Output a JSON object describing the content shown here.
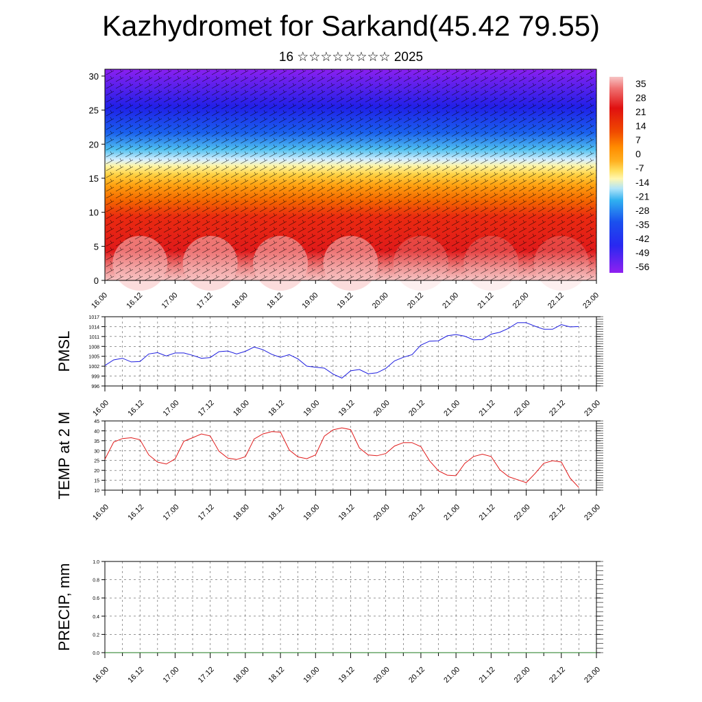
{
  "title": "Kazhydromet for Sarkand(45.42 79.55)",
  "subtitle": "16 ☆☆☆☆☆☆☆☆ 2025",
  "colors": {
    "pmsl_line": "#1a1adf",
    "temp_line": "#e01818",
    "precip_line": "#1a7a1a",
    "axis": "#000000",
    "grid": "#777777"
  },
  "chart_data": [
    {
      "type": "heatmap",
      "name": "cross-section",
      "x_ticks": [
        "16.00",
        "16.12",
        "17.00",
        "17.12",
        "18.00",
        "18.12",
        "19.00",
        "19.12",
        "20.00",
        "20.12",
        "21.00",
        "21.12",
        "22.00",
        "22.12",
        "23.00"
      ],
      "y_ticks": [
        "0",
        "5",
        "10",
        "15",
        "20",
        "25",
        "30"
      ],
      "ylim": [
        0,
        31
      ],
      "colorbar_labels": [
        "35",
        "28",
        "21",
        "14",
        "7",
        "0",
        "-7",
        "-14",
        "-21",
        "-28",
        "-35",
        "-42",
        "-49",
        "-56"
      ],
      "colorbar_colors": [
        "#f7b0b0",
        "#ea4a4a",
        "#e01010",
        "#f04a00",
        "#ff8c00",
        "#ffb020",
        "#ffe060",
        "#fff7b0",
        "#b0e4f8",
        "#30b0f0",
        "#1a50ee",
        "#2828f0",
        "#5018f0",
        "#9020f0"
      ],
      "layers_by_altitude": [
        {
          "z": 0,
          "t": 38
        },
        {
          "z": 5,
          "t": 26
        },
        {
          "z": 10,
          "t": 8
        },
        {
          "z": 15,
          "t": -10
        },
        {
          "z": 20,
          "t": -38
        },
        {
          "z": 25,
          "t": -52
        },
        {
          "z": 30,
          "t": -58
        }
      ],
      "overlay": "wind barbs"
    },
    {
      "type": "line",
      "ylabel": "PMSL",
      "x_ticks": [
        "16.00",
        "16.12",
        "17.00",
        "17.12",
        "18.00",
        "18.12",
        "19.00",
        "19.12",
        "20.00",
        "20.12",
        "21.00",
        "21.12",
        "22.00",
        "22.12",
        "23.00"
      ],
      "y_ticks": [
        "996",
        "999",
        "1002",
        "1005",
        "1008",
        "1011",
        "1014",
        "1017"
      ],
      "ylim": [
        996,
        1017
      ],
      "x_hours": [
        0,
        3,
        6,
        9,
        12,
        15,
        18,
        21,
        24,
        27,
        30,
        33,
        36,
        39,
        42,
        45,
        48,
        51,
        54,
        57,
        60,
        63,
        66,
        69,
        72,
        75,
        78,
        81,
        84,
        87,
        90,
        93,
        96,
        99,
        102,
        105,
        108,
        111,
        114,
        117,
        120,
        123,
        126,
        129,
        132,
        135,
        138,
        141,
        144,
        147,
        150,
        153,
        156,
        159,
        162
      ],
      "values": [
        1002.2,
        1003.9,
        1004.4,
        1003.3,
        1003.4,
        1005.7,
        1006.1,
        1005.1,
        1006.0,
        1006.0,
        1005.3,
        1004.4,
        1004.6,
        1006.4,
        1006.6,
        1005.7,
        1006.5,
        1007.8,
        1007.0,
        1005.6,
        1004.7,
        1005.5,
        1004.2,
        1002.0,
        1001.7,
        1001.4,
        999.6,
        998.4,
        1000.6,
        1001.0,
        999.7,
        1000.0,
        1001.3,
        1003.6,
        1004.7,
        1005.5,
        1008.4,
        1009.6,
        1009.7,
        1011.2,
        1011.6,
        1011.1,
        1010.0,
        1010.1,
        1011.7,
        1012.3,
        1013.5,
        1015.2,
        1015.2,
        1014.1,
        1013.2,
        1013.2,
        1014.6,
        1013.9,
        1014.0
      ]
    },
    {
      "type": "line",
      "ylabel": "TEMP at 2 M",
      "x_ticks": [
        "16.00",
        "16.12",
        "17.00",
        "17.12",
        "18.00",
        "18.12",
        "19.00",
        "19.12",
        "20.00",
        "20.12",
        "21.00",
        "21.12",
        "22.00",
        "22.12",
        "23.00"
      ],
      "y_ticks": [
        "10",
        "15",
        "20",
        "25",
        "30",
        "35",
        "40",
        "45"
      ],
      "ylim": [
        10,
        45
      ],
      "x_hours": [
        0,
        3,
        6,
        9,
        12,
        15,
        18,
        21,
        24,
        27,
        30,
        33,
        36,
        39,
        42,
        45,
        48,
        51,
        54,
        57,
        60,
        63,
        66,
        69,
        72,
        75,
        78,
        81,
        84,
        87,
        90,
        93,
        96,
        99,
        102,
        105,
        108,
        111,
        114,
        117,
        120,
        123,
        126,
        129,
        132,
        135,
        138,
        141,
        144,
        147,
        150,
        153,
        156,
        159,
        162
      ],
      "values": [
        25.6,
        34.3,
        36.1,
        36.5,
        35.5,
        27.8,
        24.2,
        23.2,
        25.8,
        34.7,
        36.5,
        38.4,
        37.4,
        29.7,
        26.2,
        25.5,
        26.9,
        35.9,
        38.4,
        39.6,
        39.3,
        30.3,
        26.8,
        25.9,
        27.8,
        37.3,
        40.5,
        41.5,
        40.6,
        31.3,
        27.8,
        27.4,
        28.5,
        32.3,
        34.0,
        34.0,
        32.0,
        24.8,
        19.8,
        17.6,
        17.3,
        23.5,
        27.0,
        28.2,
        27.0,
        20.3,
        16.8,
        15.3,
        13.8,
        18.4,
        23.6,
        24.9,
        24.2,
        16.1,
        11.3
      ]
    },
    {
      "type": "line",
      "ylabel": "PRECIP, mm",
      "x_ticks": [
        "16.00",
        "16.12",
        "17.00",
        "17.12",
        "18.00",
        "18.12",
        "19.00",
        "19.12",
        "20.00",
        "20.12",
        "21.00",
        "21.12",
        "22.00",
        "22.12",
        "23.00"
      ],
      "y_ticks": [
        "0.0",
        "0.2",
        "0.4",
        "0.6",
        "0.8",
        "1.0"
      ],
      "ylim": [
        0,
        1.0
      ],
      "x_hours": [
        0,
        168
      ],
      "values": [
        0,
        0
      ]
    }
  ]
}
